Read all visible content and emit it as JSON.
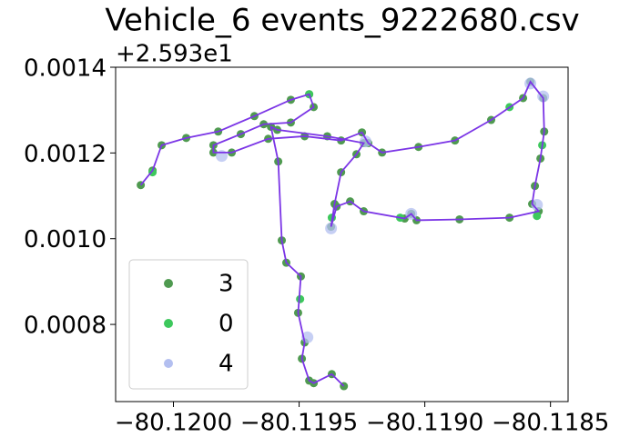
{
  "chart_data": {
    "type": "scatter",
    "title": "Vehicle_6 events_9222680.csv",
    "y_offset_label": "+2.593e1",
    "xlim": [
      -80.12023,
      -80.11843
    ],
    "ylim": [
      0.00062,
      0.0014
    ],
    "xticks": [
      {
        "value": -80.12,
        "label": "−80.1200"
      },
      {
        "value": -80.1195,
        "label": "−80.1195"
      },
      {
        "value": -80.119,
        "label": "−80.1190"
      },
      {
        "value": -80.1185,
        "label": "−80.1185"
      }
    ],
    "yticks": [
      0.0008,
      {
        "value": 0.001,
        "label": "0.0010"
      },
      0.0012,
      0.0014
    ],
    "line_color": "#7b35e6",
    "legend": "lower left",
    "series": [
      {
        "name": "3",
        "color": "#4f9a50",
        "connect": true,
        "x": [
          -80.12013,
          -80.120083,
          -80.120047,
          -80.119949,
          -80.119822,
          -80.119678,
          -80.119533,
          -80.11946,
          -80.119442,
          -80.119533,
          -80.119641,
          -80.119732,
          -80.119841,
          -80.119841,
          -80.119768,
          -80.119623,
          -80.119478,
          -80.119333,
          -80.11925,
          -80.119225,
          -80.11917,
          -80.119025,
          -80.11888,
          -80.118736,
          -80.118609,
          -80.11858,
          -80.118529,
          -80.118525,
          -80.11854,
          -80.118562,
          -80.118573,
          -80.118547,
          -80.118663,
          -80.118862,
          -80.119033,
          -80.119054,
          -80.11908,
          -80.119243,
          -80.119297,
          -80.119351,
          -80.119373,
          -80.119359,
          -80.119333,
          -80.119272,
          -80.119243,
          -80.119388,
          -80.119587,
          -80.119612,
          -80.119583,
          -80.119569,
          -80.119551,
          -80.119493,
          -80.119504,
          -80.119478,
          -80.119489,
          -80.11946,
          -80.119442,
          -80.11937,
          -80.119322
        ],
        "y": [
          0.001125,
          0.001159,
          0.001218,
          0.001235,
          0.00125,
          0.001286,
          0.001324,
          0.001337,
          0.001307,
          0.001271,
          0.001267,
          0.001244,
          0.001218,
          0.001201,
          0.001201,
          0.001233,
          0.001239,
          0.001229,
          0.001248,
          0.001223,
          0.001201,
          0.001214,
          0.001229,
          0.001277,
          0.001328,
          0.001366,
          0.001328,
          0.00125,
          0.001187,
          0.001123,
          0.001081,
          0.001064,
          0.001049,
          0.001045,
          0.001043,
          0.001058,
          0.001047,
          0.001064,
          0.001087,
          0.001075,
          0.001028,
          0.001081,
          0.001155,
          0.001197,
          0.001223,
          0.001239,
          0.001254,
          0.001261,
          0.00118,
          0.000996,
          0.000944,
          0.000912,
          0.000827,
          0.000758,
          0.00072,
          0.000669,
          0.000663,
          0.000684,
          0.000656
        ]
      },
      {
        "name": "0",
        "color": "#3dc85c",
        "x": [
          -80.120083,
          -80.11946,
          -80.119098,
          -80.118554,
          -80.118533,
          -80.118663,
          -80.119496,
          -80.11937
        ],
        "y": [
          0.001155,
          0.001337,
          0.001049,
          0.001053,
          0.001218,
          0.001307,
          0.000859,
          0.001049
        ]
      },
      {
        "name": "4",
        "color": "#b3bff0",
        "x": [
          -80.11858,
          -80.118529,
          -80.118554,
          -80.119054,
          -80.119373,
          -80.119236,
          -80.119808,
          -80.119467
        ],
        "y": [
          0.001362,
          0.001332,
          0.001079,
          0.001058,
          0.001024,
          0.001227,
          0.001193,
          0.00077
        ]
      }
    ]
  }
}
